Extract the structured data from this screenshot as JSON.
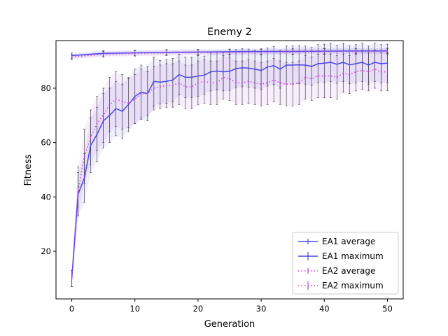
{
  "chart_data": {
    "type": "line",
    "title": "Enemy 2",
    "xlabel": "Generation",
    "ylabel": "Fitness",
    "xlim": [
      -2.5,
      52.5
    ],
    "ylim": [
      2.5,
      97.5
    ],
    "x_ticks": [
      0,
      10,
      20,
      30,
      40,
      50
    ],
    "y_ticks": [
      20,
      40,
      60,
      80
    ],
    "grid": false,
    "legend_position": "lower right",
    "series": [
      {
        "name": "EA1 average",
        "style": "solid",
        "color": "#4646e6",
        "x": [
          0,
          1,
          2,
          3,
          4,
          5,
          6,
          7,
          8,
          9,
          10,
          11,
          12,
          13,
          14,
          15,
          16,
          17,
          18,
          19,
          20,
          21,
          22,
          23,
          24,
          25,
          26,
          27,
          28,
          29,
          30,
          31,
          32,
          33,
          34,
          35,
          36,
          37,
          38,
          39,
          40,
          41,
          42,
          43,
          44,
          45,
          46,
          47,
          48,
          49,
          50
        ],
        "values": [
          10,
          41,
          47,
          59,
          63,
          68,
          70,
          72.5,
          71.5,
          74,
          77,
          78.5,
          78,
          82.5,
          82.2,
          82.5,
          83,
          85,
          84,
          84,
          84.5,
          84.8,
          86,
          86.3,
          86,
          86.2,
          87.2,
          87.5,
          87.4,
          87,
          86.5,
          87.8,
          88.3,
          87,
          88.5,
          88.5,
          88.6,
          88.5,
          88,
          89,
          89.2,
          89.5,
          88.8,
          89.5,
          88.6,
          89,
          89.5,
          88.5,
          89.5,
          89,
          89.2
        ],
        "error": [
          3,
          8,
          9,
          10,
          10,
          10,
          10,
          10,
          10,
          10,
          10,
          10,
          10,
          9,
          8,
          8,
          8,
          7.5,
          7.5,
          7.5,
          7.5,
          7,
          7,
          7,
          7,
          7,
          7,
          7,
          7,
          7,
          7,
          7,
          7,
          7,
          7,
          7,
          7,
          7,
          7,
          7,
          7,
          7,
          7,
          7,
          7,
          7,
          7,
          7,
          7,
          7,
          7
        ]
      },
      {
        "name": "EA1 maximum",
        "style": "solid",
        "color": "#4646e6",
        "x": [
          0,
          5,
          10,
          15,
          20,
          25,
          30,
          35,
          40,
          45,
          50
        ],
        "values": [
          92,
          92.8,
          93,
          93.2,
          93.3,
          93.4,
          93.5,
          93.5,
          93.6,
          93.7,
          93.7
        ],
        "error": [
          1,
          1,
          1,
          1,
          1,
          1,
          1,
          1,
          1,
          1,
          1
        ]
      },
      {
        "name": "EA2 average",
        "style": "dotted",
        "color": "#c040d8",
        "x": [
          0,
          1,
          2,
          3,
          4,
          5,
          6,
          7,
          8,
          9,
          10,
          11,
          12,
          13,
          14,
          15,
          16,
          17,
          18,
          19,
          20,
          21,
          22,
          23,
          24,
          25,
          26,
          27,
          28,
          29,
          30,
          31,
          32,
          33,
          34,
          35,
          36,
          37,
          38,
          39,
          40,
          41,
          42,
          43,
          44,
          45,
          46,
          47,
          48,
          49,
          50
        ],
        "values": [
          10,
          42,
          55,
          62,
          67,
          70,
          74,
          76,
          75,
          74.5,
          76,
          78,
          78,
          80,
          80.5,
          81,
          81,
          82,
          80.5,
          80.5,
          82,
          82.5,
          82,
          82,
          84,
          83.5,
          82,
          82,
          82.5,
          82,
          81.5,
          82,
          83,
          82,
          81.5,
          81.5,
          82,
          84,
          83.5,
          84.5,
          84.5,
          84.5,
          84,
          85.5,
          85,
          86,
          86.5,
          86,
          87,
          86,
          86
        ],
        "error": [
          3,
          9,
          10,
          10,
          10,
          10,
          10,
          10,
          10,
          9,
          9,
          9,
          8,
          8,
          8,
          8,
          8,
          8,
          8,
          8,
          8,
          8,
          8,
          8,
          8,
          8,
          8,
          8,
          8,
          8,
          8,
          8,
          8,
          8,
          8,
          8,
          8,
          8,
          8,
          8,
          8,
          8,
          8,
          7,
          7,
          7,
          7,
          7,
          7,
          7,
          7
        ]
      },
      {
        "name": "EA2 maximum",
        "style": "dotted",
        "color": "#c040d8",
        "x": [
          0,
          5,
          10,
          15,
          20,
          25,
          30,
          35,
          40,
          45,
          50
        ],
        "values": [
          91.5,
          92.5,
          92.8,
          93,
          93.1,
          93.2,
          93.3,
          93.4,
          93.5,
          93.5,
          93.6
        ],
        "error": [
          1,
          1,
          1,
          1,
          1,
          1,
          1,
          1,
          1,
          1,
          1
        ]
      }
    ]
  }
}
